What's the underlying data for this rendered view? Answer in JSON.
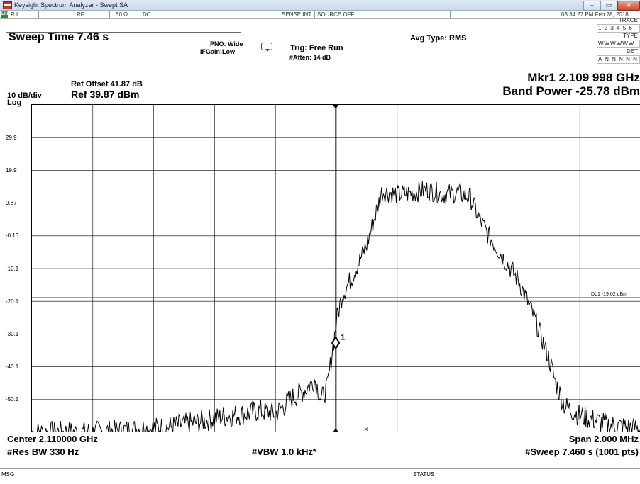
{
  "window": {
    "title": "Keysight Spectrum Analyzer - Swept SA",
    "minimize_glyph": "–",
    "maximize_glyph": "▭",
    "close_glyph": "✕"
  },
  "status_bar": {
    "lxi": "LXI",
    "mode": "R L",
    "input": "RF",
    "impedance": "50 Ω",
    "coupling": "DC",
    "sense": "SENSE:INT",
    "source": "SOURCE OFF",
    "datetime": "03:34:27 PM Feb 28, 2018"
  },
  "sweep": {
    "label": "Sweep Time 7.46 s"
  },
  "settings": {
    "pno": "PNO: Wide",
    "ifgain": "IFGain:Low",
    "trig": "Trig: Free Run",
    "atten": "#Atten: 14 dB",
    "avg_type": "Avg Type: RMS"
  },
  "trace_table": {
    "trace_label": "TRACE",
    "trace_value": "1 2 3 4 5 6",
    "type_label": "TYPE",
    "type_value": "WWWWWW",
    "det_label": "DET",
    "det_value": "A N N N N N"
  },
  "ref": {
    "offset": "Ref Offset 41.87 dB",
    "level": "Ref 39.87 dBm",
    "scale": "10 dB/div",
    "log": "Log"
  },
  "marker": {
    "line1": "Mkr1 2.109 998 GHz",
    "line2": "Band Power -25.78 dBm",
    "label": "1"
  },
  "display_line": {
    "label": "DL1 -19.02 dBm",
    "value": -19.02
  },
  "footer": {
    "center": "Center 2.110000 GHz",
    "span": "Span 2.000 MHz",
    "res_bw": "#Res BW 330 Hz",
    "vbw": "#VBW 1.0 kHz*",
    "sweep": "#Sweep  7.460 s (1001 pts)"
  },
  "bottom": {
    "msg": "MSG",
    "status": "STATUS"
  },
  "colors": {
    "trace": "#000000",
    "grid": "#000000",
    "titlebar": "#c9d9ee",
    "close_button": "#c84b2f"
  },
  "chart_data": {
    "type": "line",
    "title": "",
    "xlabel": "",
    "ylabel": "",
    "x_unit": "MHz",
    "y_unit": "dBm",
    "xlim": [
      2109.0,
      2111.0
    ],
    "ylim": [
      -60.13,
      39.87
    ],
    "yticks": [
      29.9,
      19.9,
      9.87,
      -0.13,
      -10.1,
      -20.1,
      -30.1,
      -40.1,
      -50.1
    ],
    "grid": true,
    "series": [
      {
        "x": [
          2109.0,
          2109.2,
          2109.3,
          2109.45,
          2109.55,
          2109.62,
          2109.7,
          2109.75,
          2109.8,
          2109.85,
          2109.9,
          2109.93,
          2109.95,
          2109.97,
          2109.995,
          2110.0,
          2110.02,
          2110.05,
          2110.08,
          2110.1,
          2110.15,
          2110.2,
          2110.25,
          2110.3,
          2110.35,
          2110.4,
          2110.44,
          2110.47,
          2110.5,
          2110.55,
          2110.6,
          2110.65,
          2110.7,
          2110.72,
          2110.75,
          2110.8,
          2110.9,
          2111.0
        ],
        "y": [
          -60.1,
          -60.1,
          -59.5,
          -58.5,
          -57.0,
          -55.5,
          -54.5,
          -53.5,
          -54.5,
          -50.0,
          -47.0,
          -44.0,
          -50.0,
          -46.5,
          -30.0,
          -26.0,
          -18.0,
          -13.0,
          -7.0,
          -3.0,
          13.5,
          12.5,
          13.0,
          14.0,
          12.5,
          13.0,
          11.5,
          5.0,
          0.0,
          -7.0,
          -14.0,
          -25.0,
          -38.0,
          -45.0,
          -52.0,
          -55.0,
          -58.0,
          -59.0
        ]
      }
    ],
    "marker": {
      "x": 2109.998,
      "y": -32.8,
      "label": "1"
    },
    "display_line": -19.02
  }
}
